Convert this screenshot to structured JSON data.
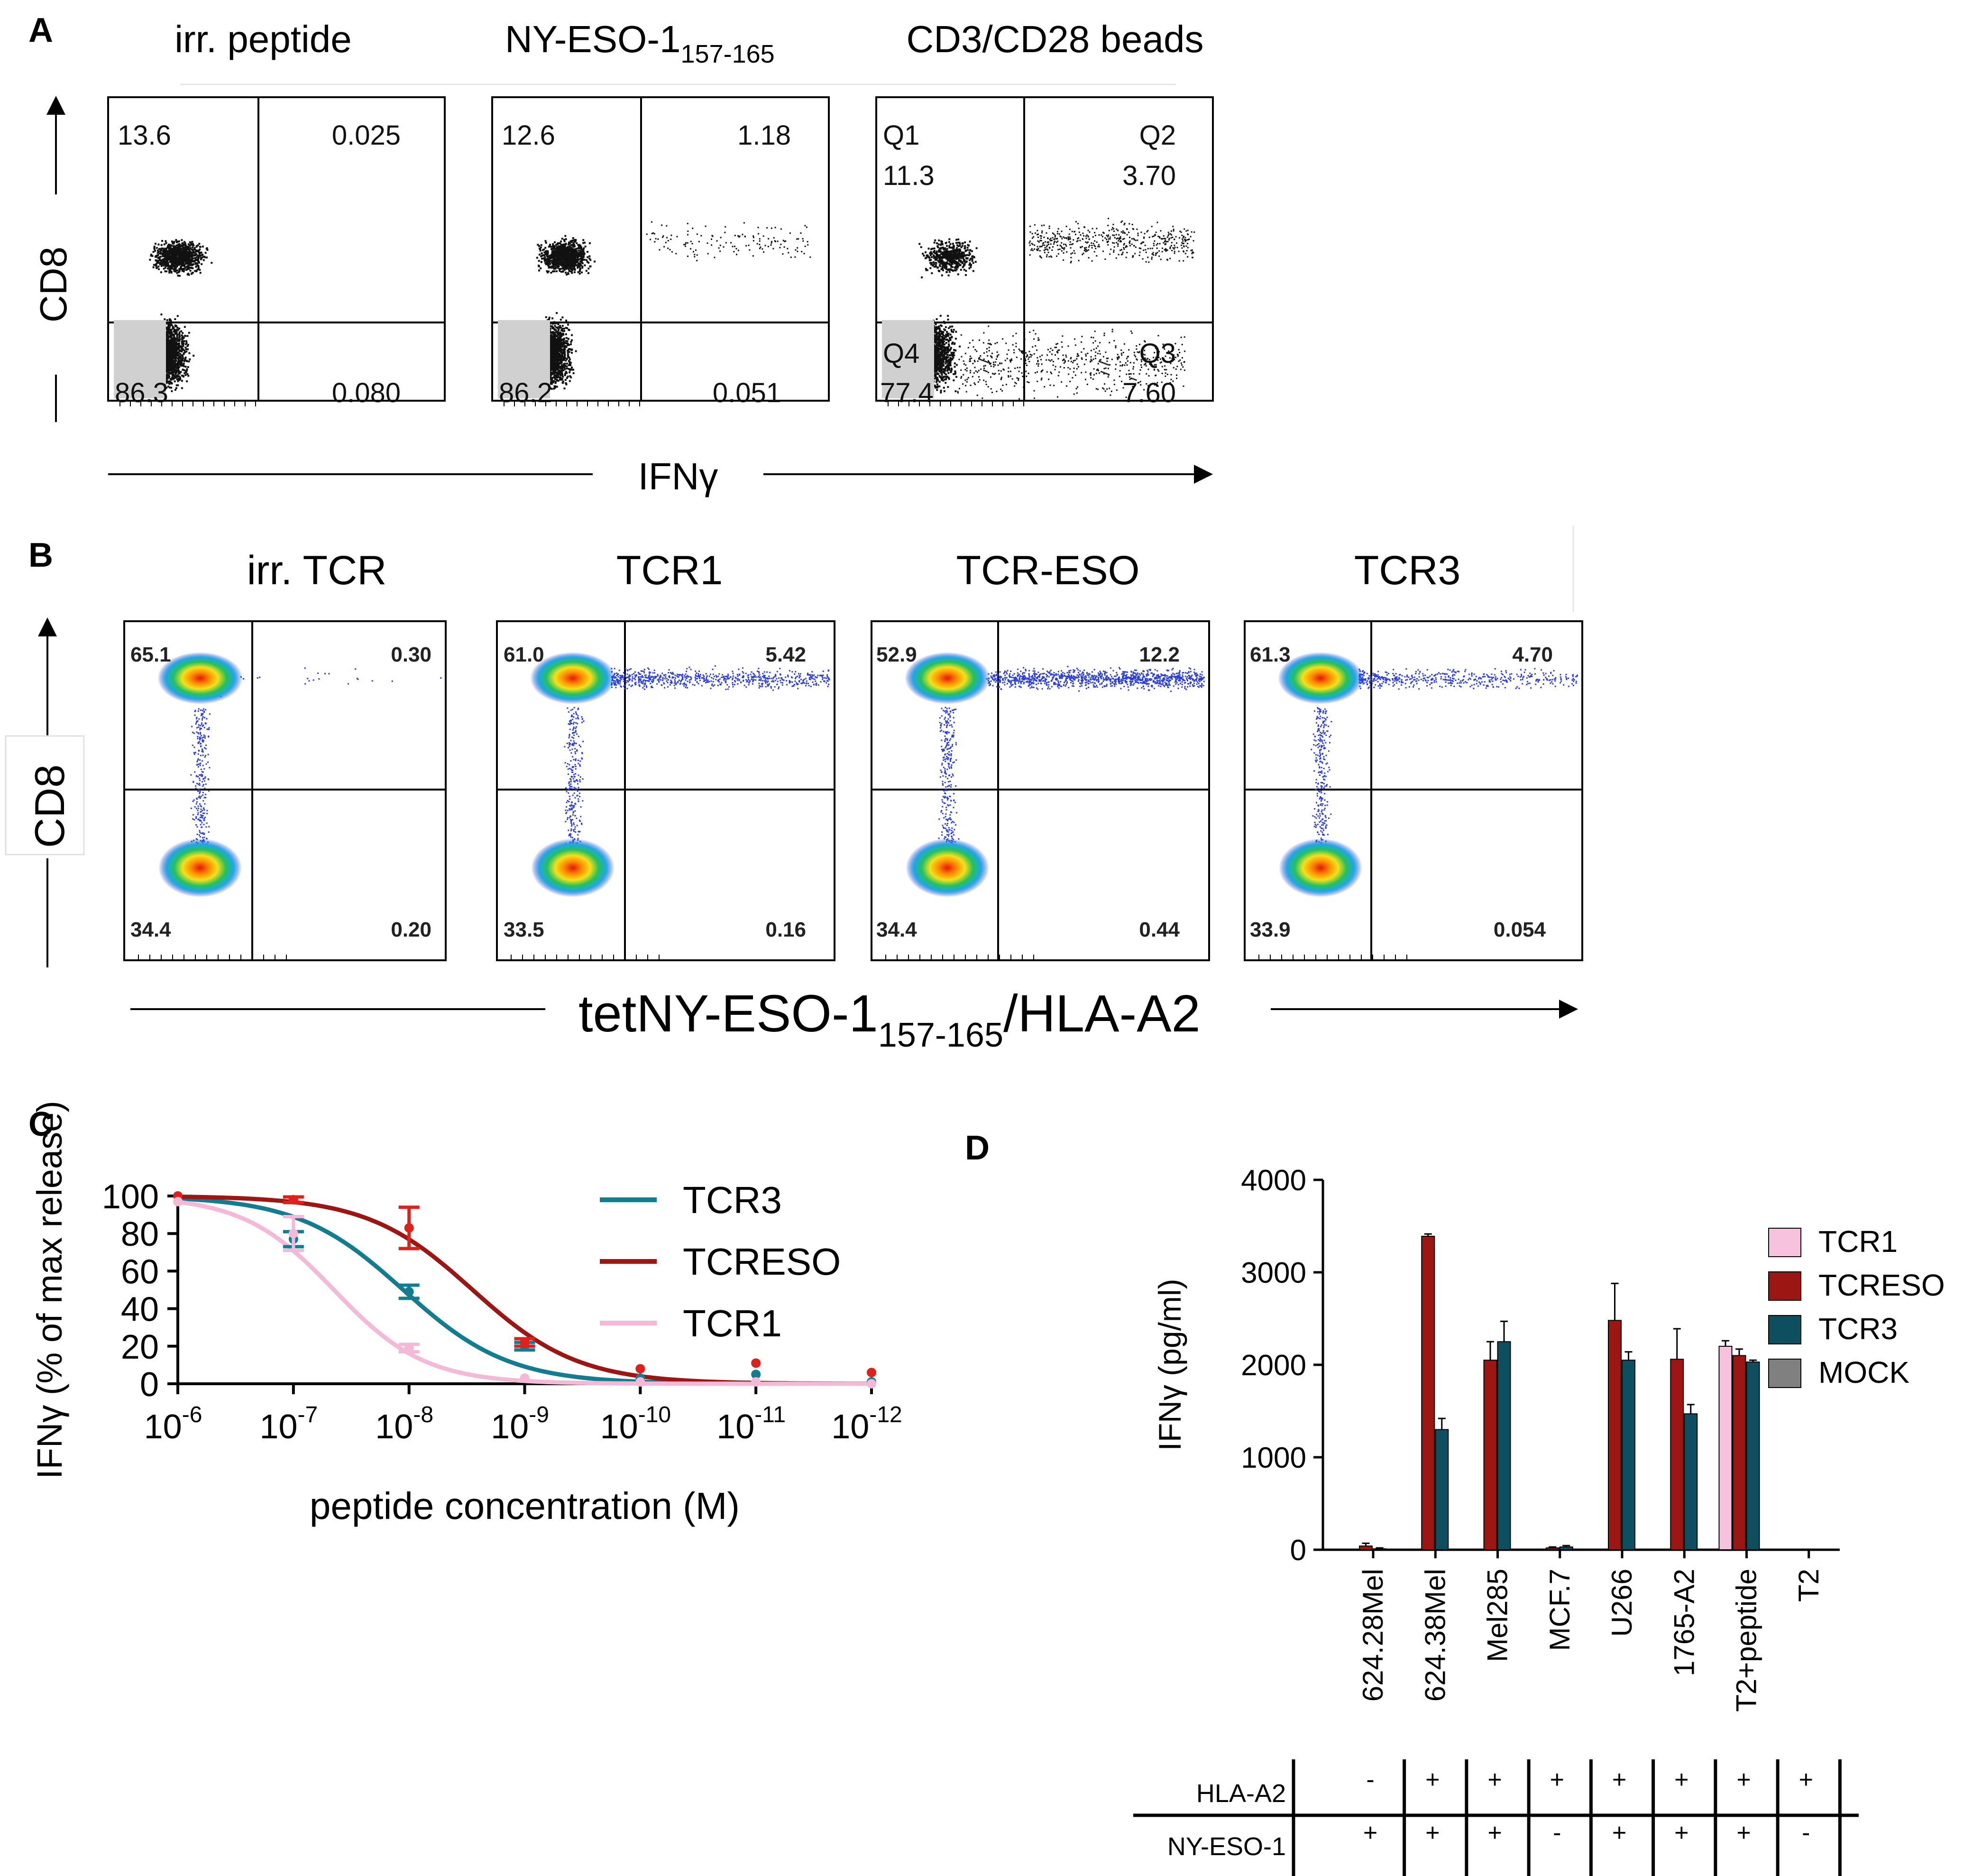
{
  "figure": {
    "panels": {
      "A": {
        "letter": "A",
        "x_axis_label": "IFNγ",
        "y_axis_label": "CD8",
        "plots": [
          {
            "title": "irr. peptide",
            "q_labels": [
              "",
              "",
              "",
              ""
            ],
            "values": [
              "13.6",
              "0.025",
              "0.080",
              "86.3"
            ]
          },
          {
            "title": "NY-ESO-1",
            "title_sub": "157-165",
            "q_labels": [
              "",
              "",
              "",
              ""
            ],
            "values": [
              "12.6",
              "1.18",
              "0.051",
              "86.2"
            ]
          },
          {
            "title": "CD3/CD28 beads",
            "q_labels": [
              "Q1",
              "Q2",
              "Q3",
              "Q4"
            ],
            "values": [
              "11.3",
              "3.70",
              "7.60",
              "77.4"
            ]
          }
        ]
      },
      "B": {
        "letter": "B",
        "x_axis_label": "tetNY-ESO-1",
        "x_axis_sub": "157-165",
        "x_axis_suffix": "/HLA-A2",
        "y_axis_label": "CD8",
        "plots": [
          {
            "title": "irr. TCR",
            "values": [
              "65.1",
              "0.30",
              "0.20",
              "34.4"
            ]
          },
          {
            "title": "TCR1",
            "values": [
              "61.0",
              "5.42",
              "0.16",
              "33.5"
            ]
          },
          {
            "title": "TCR-ESO",
            "values": [
              "52.9",
              "12.2",
              "0.44",
              "34.4"
            ]
          },
          {
            "title": "TCR3",
            "values": [
              "61.3",
              "4.70",
              "0.054",
              "33.9"
            ]
          }
        ]
      },
      "C": {
        "letter": "C"
      },
      "D": {
        "letter": "D",
        "table_rows": [
          {
            "label": "HLA-A2",
            "cells": [
              "-",
              "+",
              "+",
              "+",
              "+",
              "+",
              "+",
              "+"
            ]
          },
          {
            "label": "NY-ESO-1",
            "cells": [
              "+",
              "+",
              "+",
              "-",
              "+",
              "+",
              "+",
              "-"
            ]
          }
        ]
      }
    }
  },
  "chart_data": [
    {
      "panel": "C",
      "type": "line",
      "title": "",
      "xlabel": "peptide concentration (M)",
      "ylabel": "IFNγ (% of max release)",
      "x_scale": "log10, reversed",
      "x_ticks": [
        "10",
        "10",
        "10",
        "10",
        "10",
        "10",
        "10"
      ],
      "x_tick_exponents": [
        "-6",
        "-7",
        "-8",
        "-9",
        "-10",
        "-11",
        "-12"
      ],
      "y_ticks": [
        "0",
        "20",
        "40",
        "60",
        "80",
        "100"
      ],
      "xlim": [
        -6,
        -12
      ],
      "ylim": [
        0,
        100
      ],
      "legend_position": "top-right",
      "series": [
        {
          "name": "TCR3",
          "color": "#137c90",
          "ec50_log": -7.95,
          "hill": 0.95,
          "points": [
            {
              "x": -6,
              "y": 100
            },
            {
              "x": -7,
              "y": 77,
              "err": 4
            },
            {
              "x": -8,
              "y": 49,
              "err": 3.5
            },
            {
              "x": -9,
              "y": 20,
              "err": 2
            },
            {
              "x": -10,
              "y": 3
            },
            {
              "x": -11,
              "y": 5
            },
            {
              "x": -12,
              "y": 1
            }
          ]
        },
        {
          "name": "TCRESO",
          "color": "#9c1614",
          "ec50_log": -8.55,
          "hill": 0.95,
          "points": [
            {
              "x": -6,
              "y": 100
            },
            {
              "x": -7,
              "y": 98,
              "err": 1.5
            },
            {
              "x": -8,
              "y": 83,
              "err": 11
            },
            {
              "x": -9,
              "y": 22,
              "err": 2
            },
            {
              "x": -10,
              "y": 8
            },
            {
              "x": -11,
              "y": 11
            },
            {
              "x": -12,
              "y": 6
            }
          ]
        },
        {
          "name": "TCR1",
          "color": "#f4b9d6",
          "ec50_log": -7.35,
          "hill": 1.1,
          "points": [
            {
              "x": -6,
              "y": 97
            },
            {
              "x": -7,
              "y": 80,
              "err": 9
            },
            {
              "x": -8,
              "y": 19,
              "err": 2
            },
            {
              "x": -9,
              "y": 3
            },
            {
              "x": -10,
              "y": 1
            },
            {
              "x": -11,
              "y": 1
            },
            {
              "x": -12,
              "y": 0
            }
          ]
        }
      ]
    },
    {
      "panel": "D",
      "type": "bar",
      "title": "",
      "xlabel": "",
      "ylabel": "IFNγ (pg/ml)",
      "ylim": [
        0,
        4000
      ],
      "y_ticks": [
        "0",
        "1000",
        "2000",
        "3000",
        "4000"
      ],
      "legend_position": "top-right",
      "categories": [
        "624.28Mel",
        "624.38Mel",
        "Mel285",
        "MCF.7",
        "U266",
        "1765-A2",
        "T2+peptide",
        "T2"
      ],
      "series": [
        {
          "name": "TCR1",
          "color": "#f7c2dd",
          "values": [
            0,
            0,
            0,
            0,
            0,
            0,
            2200,
            0
          ],
          "errors": [
            0,
            0,
            0,
            0,
            0,
            0,
            60,
            0
          ]
        },
        {
          "name": "TCRESO",
          "color": "#9c1614",
          "values": [
            40,
            3390,
            2050,
            20,
            2480,
            2060,
            2100,
            0
          ],
          "errors": [
            30,
            25,
            200,
            10,
            400,
            330,
            70,
            0
          ]
        },
        {
          "name": "TCR3",
          "color": "#0d4f5f",
          "values": [
            10,
            1300,
            2250,
            30,
            2050,
            1470,
            2030,
            0
          ],
          "errors": [
            10,
            120,
            220,
            15,
            90,
            100,
            20,
            0
          ]
        },
        {
          "name": "MOCK",
          "color": "#808080",
          "values": [
            0,
            0,
            0,
            0,
            0,
            0,
            0,
            0
          ],
          "errors": [
            0,
            0,
            0,
            0,
            0,
            0,
            0,
            0
          ]
        }
      ]
    }
  ]
}
